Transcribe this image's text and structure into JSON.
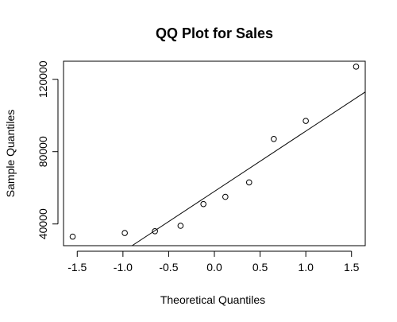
{
  "chart_data": {
    "type": "scatter",
    "title": "QQ Plot for Sales",
    "xlabel": "Theoretical Quantiles",
    "ylabel": "Sample Quantiles",
    "xlim": [
      -1.65,
      1.65
    ],
    "ylim": [
      28000,
      130000
    ],
    "x_ticks": [
      -1.5,
      -1.0,
      -0.5,
      0.0,
      0.5,
      1.0,
      1.5
    ],
    "x_tick_labels": [
      "-1.5",
      "-1.0",
      "-0.5",
      "0.0",
      "0.5",
      "1.0",
      "1.5"
    ],
    "y_ticks": [
      40000,
      80000,
      120000
    ],
    "y_tick_labels": [
      "40000",
      "80000",
      "120000"
    ],
    "grid": false,
    "points": [
      {
        "x": -1.55,
        "y": 33000
      },
      {
        "x": -0.98,
        "y": 35000
      },
      {
        "x": -0.65,
        "y": 36000
      },
      {
        "x": -0.37,
        "y": 39000
      },
      {
        "x": -0.12,
        "y": 51000
      },
      {
        "x": 0.12,
        "y": 55000
      },
      {
        "x": 0.38,
        "y": 63000
      },
      {
        "x": 0.65,
        "y": 87000
      },
      {
        "x": 1.0,
        "y": 97000
      },
      {
        "x": 1.55,
        "y": 127000
      }
    ],
    "reference_line": {
      "x1": -0.9,
      "y1": 28000,
      "x2": 1.65,
      "y2": 113000
    }
  }
}
